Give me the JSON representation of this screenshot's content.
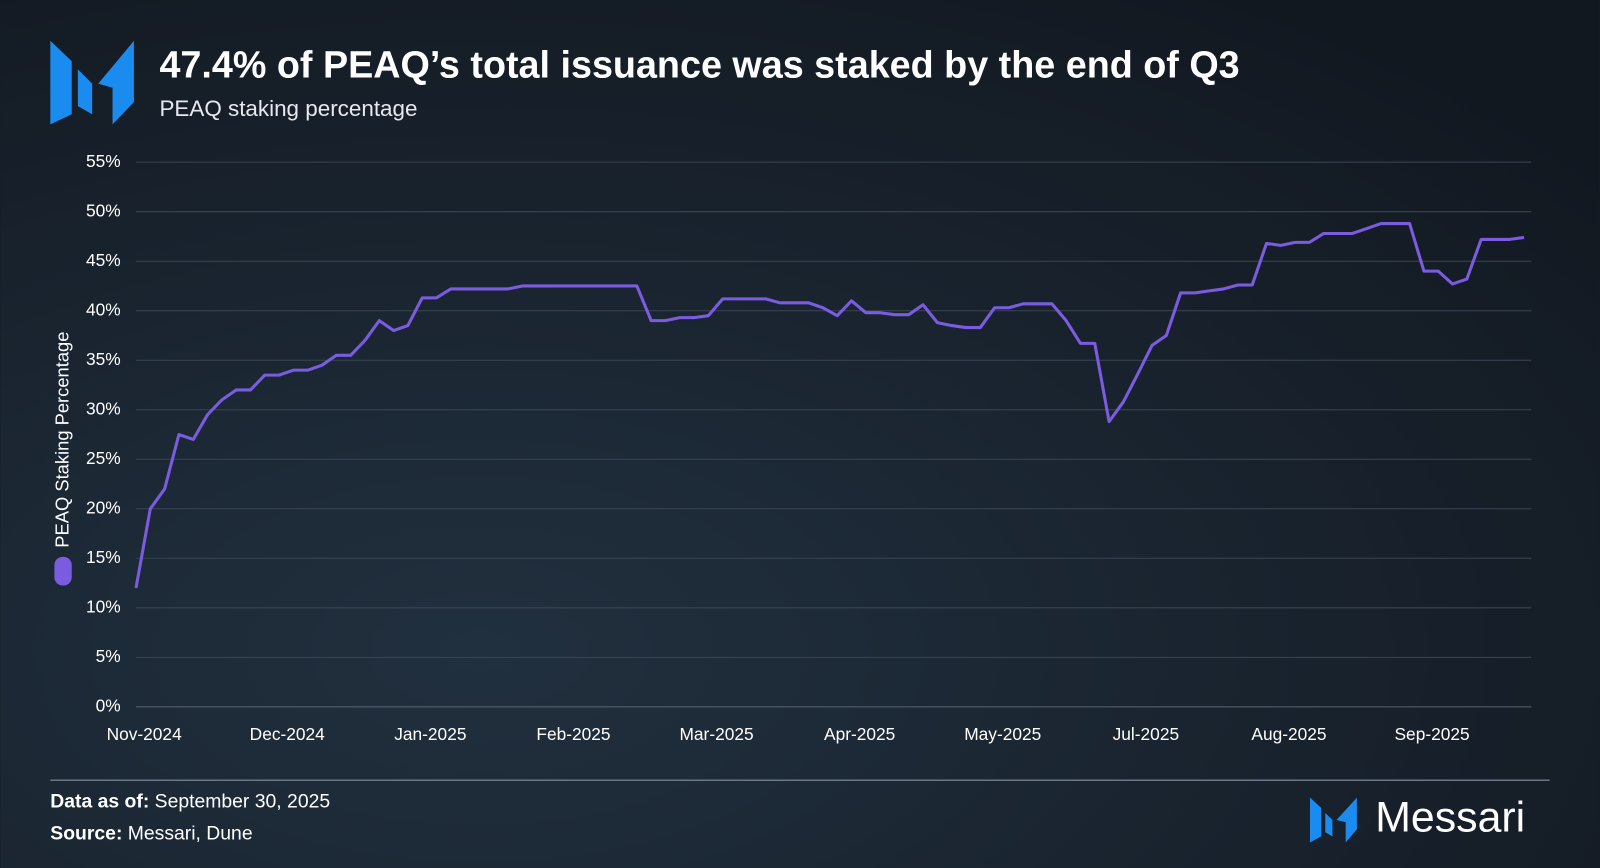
{
  "chart_data": {
    "type": "line",
    "title": "47.4% of PEAQ’s total issuance was staked by the end of Q3",
    "subtitle": "PEAQ staking percentage",
    "categories": [
      "Nov-2024",
      null,
      null,
      null,
      null,
      null,
      null,
      null,
      null,
      null,
      "Dec-2024",
      null,
      null,
      null,
      null,
      null,
      null,
      null,
      null,
      null,
      "Jan-2025",
      null,
      null,
      null,
      null,
      null,
      null,
      null,
      null,
      null,
      "Feb-2025",
      null,
      null,
      null,
      null,
      null,
      null,
      null,
      null,
      null,
      "Mar-2025",
      null,
      null,
      null,
      null,
      null,
      null,
      null,
      null,
      null,
      "Apr-2025",
      null,
      null,
      null,
      null,
      null,
      null,
      null,
      null,
      null,
      "May-2025",
      null,
      null,
      null,
      null,
      null,
      null,
      null,
      null,
      null,
      "Jul-2025",
      null,
      null,
      null,
      null,
      null,
      null,
      null,
      null,
      null,
      "Aug-2025",
      null,
      null,
      null,
      null,
      null,
      null,
      null,
      null,
      null,
      "Sep-2025",
      null,
      null,
      null,
      null,
      null,
      null,
      null
    ],
    "series": [
      {
        "name": "PEAQ Staking Percentage",
        "color": "#7b5ce0",
        "values": [
          12,
          20,
          22,
          27.5,
          27,
          29.5,
          31,
          32,
          32,
          33.5,
          33.5,
          34,
          34,
          34.5,
          35.5,
          35.5,
          37,
          39,
          38,
          38.5,
          41.3,
          41.3,
          42.2,
          42.2,
          42.2,
          42.2,
          42.2,
          42.5,
          42.5,
          42.5,
          42.5,
          42.5,
          42.5,
          42.5,
          42.5,
          42.5,
          39,
          39,
          39.3,
          39.3,
          39.5,
          41.2,
          41.2,
          41.2,
          41.2,
          40.8,
          40.8,
          40.8,
          40.3,
          39.5,
          41,
          39.8,
          39.8,
          39.6,
          39.6,
          40.6,
          38.8,
          38.5,
          38.3,
          38.3,
          40.3,
          40.3,
          40.7,
          40.7,
          40.7,
          39,
          36.7,
          36.7,
          28.8,
          30.8,
          33.6,
          36.5,
          37.5,
          41.8,
          41.8,
          42,
          42.2,
          42.6,
          42.6,
          46.8,
          46.6,
          46.9,
          46.9,
          47.8,
          47.8,
          47.8,
          48.3,
          48.8,
          48.8,
          48.8,
          44,
          44,
          42.7,
          43.2,
          47.2,
          47.2,
          47.2,
          47.4
        ]
      }
    ],
    "ylim": [
      0,
      55
    ],
    "yticks": [
      {
        "value": 0,
        "label": "0%"
      },
      {
        "value": 5,
        "label": "5%"
      },
      {
        "value": 10,
        "label": "10%"
      },
      {
        "value": 15,
        "label": "15%"
      },
      {
        "value": 20,
        "label": "20%"
      },
      {
        "value": 25,
        "label": "25%"
      },
      {
        "value": 30,
        "label": "30%"
      },
      {
        "value": 35,
        "label": "35%"
      },
      {
        "value": 40,
        "label": "40%"
      },
      {
        "value": 45,
        "label": "45%"
      },
      {
        "value": 50,
        "label": "50%"
      },
      {
        "value": 55,
        "label": "55%"
      }
    ],
    "grid": true
  },
  "footer": {
    "date_label": "Data as of:",
    "date": "September 30, 2025",
    "source_label": "Source:",
    "source": "Messari, Dune"
  },
  "brand": "Messari"
}
